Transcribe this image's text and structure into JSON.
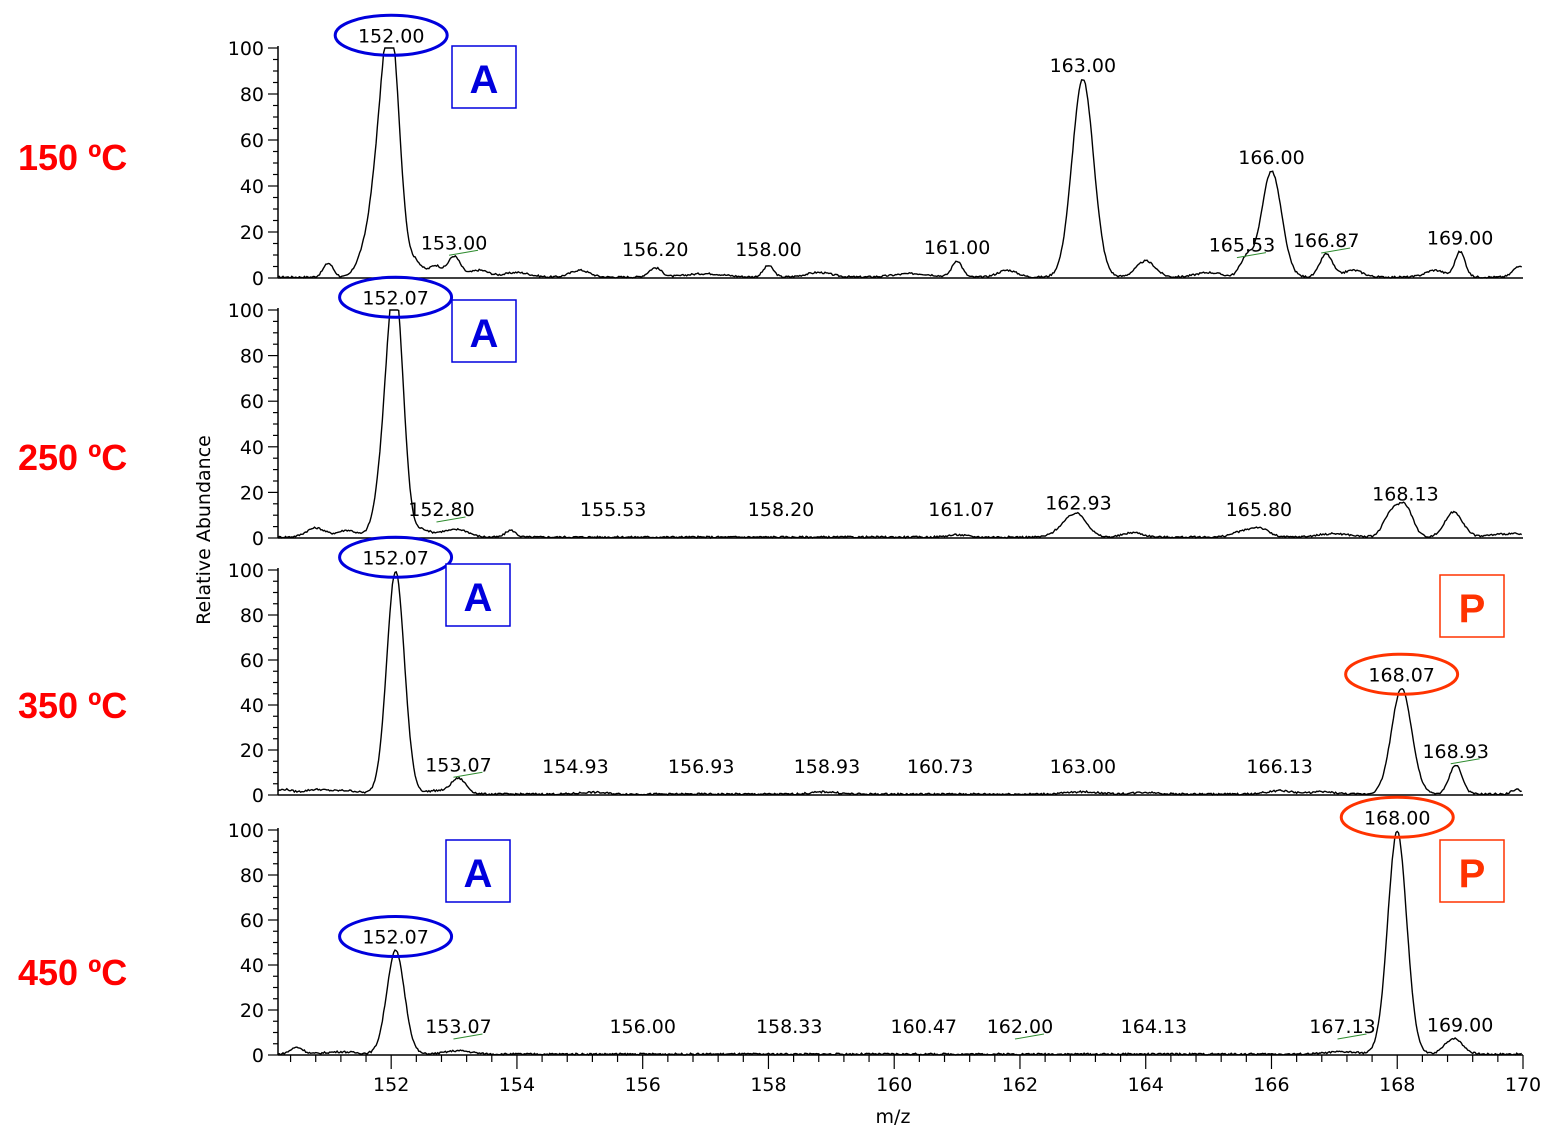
{
  "chart_data": {
    "type": "line",
    "xlabel": "m/z",
    "ylabel": "Relative Abundance",
    "xlim": [
      150.2,
      170
    ],
    "ylim": [
      0,
      100
    ],
    "x_ticks": [
      "152",
      "154",
      "156",
      "158",
      "160",
      "162",
      "164",
      "166",
      "168",
      "170"
    ],
    "y_ticks": [
      "0",
      "20",
      "40",
      "60",
      "80",
      "100"
    ],
    "colors": {
      "temperature": "#ff0000",
      "A": "#0000dd",
      "P": "#ff3300",
      "trace": "#000000"
    },
    "panels": [
      {
        "label": "150 ºC",
        "marker": "A",
        "peaks": [
          {
            "mz": 151.0,
            "y": 6,
            "w": 0.08
          },
          {
            "mz": 151.5,
            "y": 4,
            "w": 0.1
          },
          {
            "mz": 151.78,
            "y": 36,
            "w": 0.15
          },
          {
            "mz": 152.0,
            "y": 99,
            "w": 0.14
          },
          {
            "mz": 152.4,
            "y": 6,
            "w": 0.1
          },
          {
            "mz": 152.7,
            "y": 5,
            "w": 0.1
          },
          {
            "mz": 153.0,
            "y": 9,
            "w": 0.1
          },
          {
            "mz": 153.4,
            "y": 3,
            "w": 0.15
          },
          {
            "mz": 154.0,
            "y": 2,
            "w": 0.2
          },
          {
            "mz": 155.0,
            "y": 3,
            "w": 0.15
          },
          {
            "mz": 156.2,
            "y": 4,
            "w": 0.1
          },
          {
            "mz": 157.0,
            "y": 1.5,
            "w": 0.3
          },
          {
            "mz": 158.0,
            "y": 5,
            "w": 0.08
          },
          {
            "mz": 158.8,
            "y": 2,
            "w": 0.2
          },
          {
            "mz": 160.3,
            "y": 1.5,
            "w": 0.3
          },
          {
            "mz": 161.0,
            "y": 7,
            "w": 0.08
          },
          {
            "mz": 161.8,
            "y": 3,
            "w": 0.15
          },
          {
            "mz": 163.0,
            "y": 86,
            "w": 0.17
          },
          {
            "mz": 164.0,
            "y": 7,
            "w": 0.15
          },
          {
            "mz": 165.0,
            "y": 2,
            "w": 0.2
          },
          {
            "mz": 165.6,
            "y": 8,
            "w": 0.1
          },
          {
            "mz": 166.0,
            "y": 46,
            "w": 0.16
          },
          {
            "mz": 166.87,
            "y": 10,
            "w": 0.1
          },
          {
            "mz": 167.3,
            "y": 3,
            "w": 0.15
          },
          {
            "mz": 168.6,
            "y": 3,
            "w": 0.15
          },
          {
            "mz": 169.0,
            "y": 11,
            "w": 0.08
          },
          {
            "mz": 169.95,
            "y": 5,
            "w": 0.1
          }
        ],
        "labels": [
          {
            "mz": 152.0,
            "text": "152.00",
            "y": 99,
            "circled": true,
            "color": "#0000dd"
          },
          {
            "mz": 153.0,
            "text": "153.00",
            "y": 9,
            "leader": true
          },
          {
            "mz": 156.2,
            "text": "156.20",
            "y": 4
          },
          {
            "mz": 158.0,
            "text": "158.00",
            "y": 5
          },
          {
            "mz": 161.0,
            "text": "161.00",
            "y": 7
          },
          {
            "mz": 163.0,
            "text": "163.00",
            "y": 86
          },
          {
            "mz": 165.53,
            "text": "165.53",
            "y": 8,
            "leader": true
          },
          {
            "mz": 166.0,
            "text": "166.00",
            "y": 46
          },
          {
            "mz": 166.87,
            "text": "166.87",
            "y": 10,
            "leader": true
          },
          {
            "mz": 169.0,
            "text": "169.00",
            "y": 11
          }
        ]
      },
      {
        "label": "250 ºC",
        "marker": "A",
        "peaks": [
          {
            "mz": 150.8,
            "y": 4,
            "w": 0.15
          },
          {
            "mz": 151.3,
            "y": 3,
            "w": 0.15
          },
          {
            "mz": 151.9,
            "y": 26,
            "w": 0.14
          },
          {
            "mz": 152.07,
            "y": 99,
            "w": 0.13
          },
          {
            "mz": 152.5,
            "y": 3,
            "w": 0.1
          },
          {
            "mz": 152.8,
            "y": 2,
            "w": 0.15
          },
          {
            "mz": 153.1,
            "y": 3,
            "w": 0.15
          },
          {
            "mz": 153.9,
            "y": 3,
            "w": 0.08
          },
          {
            "mz": 161.0,
            "y": 1,
            "w": 0.15
          },
          {
            "mz": 162.7,
            "y": 4,
            "w": 0.15
          },
          {
            "mz": 162.93,
            "y": 9,
            "w": 0.15
          },
          {
            "mz": 163.8,
            "y": 2,
            "w": 0.15
          },
          {
            "mz": 165.5,
            "y": 2,
            "w": 0.15
          },
          {
            "mz": 165.8,
            "y": 4,
            "w": 0.15
          },
          {
            "mz": 167.0,
            "y": 1.5,
            "w": 0.25
          },
          {
            "mz": 167.9,
            "y": 10,
            "w": 0.12
          },
          {
            "mz": 168.13,
            "y": 13,
            "w": 0.12
          },
          {
            "mz": 168.9,
            "y": 11,
            "w": 0.14
          },
          {
            "mz": 169.8,
            "y": 1.5,
            "w": 0.3
          }
        ],
        "labels": [
          {
            "mz": 152.07,
            "text": "152.07",
            "y": 99,
            "circled": true,
            "color": "#0000dd"
          },
          {
            "mz": 152.8,
            "text": "152.80",
            "y": 3,
            "leader": true
          },
          {
            "mz": 155.53,
            "text": "155.53",
            "y": 0
          },
          {
            "mz": 158.2,
            "text": "158.20",
            "y": 0
          },
          {
            "mz": 161.07,
            "text": "161.07",
            "y": 1
          },
          {
            "mz": 162.93,
            "text": "162.93",
            "y": 9
          },
          {
            "mz": 165.8,
            "text": "165.80",
            "y": 4
          },
          {
            "mz": 168.13,
            "text": "168.13",
            "y": 13
          }
        ]
      },
      {
        "label": "350 ºC",
        "marker": "A",
        "marker2": "P",
        "peaks": [
          {
            "mz": 150.3,
            "y": 2,
            "w": 0.12
          },
          {
            "mz": 150.8,
            "y": 2,
            "w": 0.2
          },
          {
            "mz": 151.3,
            "y": 1.5,
            "w": 0.2
          },
          {
            "mz": 152.07,
            "y": 99,
            "w": 0.14
          },
          {
            "mz": 152.7,
            "y": 1.5,
            "w": 0.15
          },
          {
            "mz": 153.07,
            "y": 7,
            "w": 0.12
          },
          {
            "mz": 155.2,
            "y": 0.8,
            "w": 0.2
          },
          {
            "mz": 158.9,
            "y": 1,
            "w": 0.2
          },
          {
            "mz": 163.0,
            "y": 1,
            "w": 0.25
          },
          {
            "mz": 164.0,
            "y": 0.8,
            "w": 0.2
          },
          {
            "mz": 166.13,
            "y": 1.5,
            "w": 0.2
          },
          {
            "mz": 166.8,
            "y": 1,
            "w": 0.2
          },
          {
            "mz": 168.07,
            "y": 47,
            "w": 0.16
          },
          {
            "mz": 168.93,
            "y": 13,
            "w": 0.1
          },
          {
            "mz": 169.9,
            "y": 2,
            "w": 0.08
          }
        ],
        "labels": [
          {
            "mz": 152.07,
            "text": "152.07",
            "y": 99,
            "circled": true,
            "color": "#0000dd"
          },
          {
            "mz": 153.07,
            "text": "153.07",
            "y": 7,
            "leader": true
          },
          {
            "mz": 154.93,
            "text": "154.93",
            "y": 0
          },
          {
            "mz": 156.93,
            "text": "156.93",
            "y": 0
          },
          {
            "mz": 158.93,
            "text": "158.93",
            "y": 1
          },
          {
            "mz": 160.73,
            "text": "160.73",
            "y": 0
          },
          {
            "mz": 163.0,
            "text": "163.00",
            "y": 1
          },
          {
            "mz": 166.13,
            "text": "166.13",
            "y": 1.5
          },
          {
            "mz": 168.07,
            "text": "168.07",
            "y": 47,
            "circled": true,
            "color": "#ff3300"
          },
          {
            "mz": 168.93,
            "text": "168.93",
            "y": 13,
            "leader": true
          }
        ]
      },
      {
        "label": "450 ºC",
        "marker": "A",
        "marker2": "P",
        "peaks": [
          {
            "mz": 150.5,
            "y": 3,
            "w": 0.1
          },
          {
            "mz": 151.2,
            "y": 1,
            "w": 0.25
          },
          {
            "mz": 152.07,
            "y": 46,
            "w": 0.14
          },
          {
            "mz": 153.07,
            "y": 1.5,
            "w": 0.2
          },
          {
            "mz": 167.13,
            "y": 1,
            "w": 0.25
          },
          {
            "mz": 168.0,
            "y": 99,
            "w": 0.15
          },
          {
            "mz": 168.9,
            "y": 7,
            "w": 0.14
          }
        ],
        "labels": [
          {
            "mz": 152.07,
            "text": "152.07",
            "y": 46,
            "circled": true,
            "color": "#0000dd"
          },
          {
            "mz": 153.07,
            "text": "153.07",
            "y": 1.5,
            "leader": true
          },
          {
            "mz": 156.0,
            "text": "156.00",
            "y": 0
          },
          {
            "mz": 158.33,
            "text": "158.33",
            "y": 0
          },
          {
            "mz": 160.47,
            "text": "160.47",
            "y": 0
          },
          {
            "mz": 162.0,
            "text": "162.00",
            "y": 0,
            "leader": true
          },
          {
            "mz": 164.13,
            "text": "164.13",
            "y": 0
          },
          {
            "mz": 167.13,
            "text": "167.13",
            "y": 1,
            "leader": true
          },
          {
            "mz": 168.0,
            "text": "168.00",
            "y": 99,
            "circled": true,
            "color": "#ff3300"
          },
          {
            "mz": 169.0,
            "text": "169.00",
            "y": 7
          }
        ]
      }
    ]
  }
}
